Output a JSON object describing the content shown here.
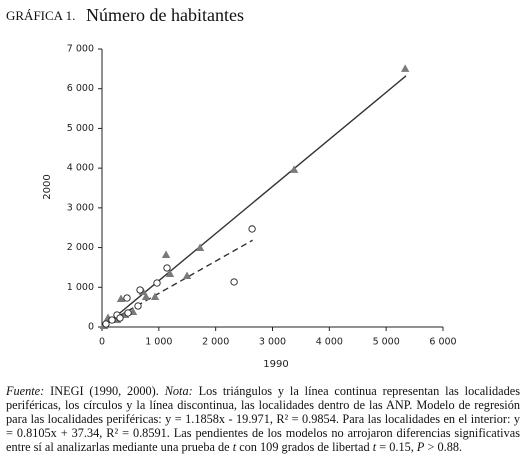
{
  "chart_data": {
    "type": "scatter",
    "title_prefix": "GRÁFICA 1.",
    "title": "Número de habitantes",
    "x_label": "1990",
    "y_label": "2000",
    "xlim": [
      0,
      6000
    ],
    "xticks": [
      0,
      {
        "value": 1000,
        "label": "1 000"
      },
      {
        "value": 2000,
        "label": "2 000"
      },
      {
        "value": 3000,
        "label": "3 000"
      },
      {
        "value": 4000,
        "label": "4 000"
      },
      {
        "value": 5000,
        "label": "5 000"
      },
      {
        "value": 6000,
        "label": "6 000"
      }
    ],
    "ylim": [
      0,
      7000
    ],
    "yticks": [
      0,
      {
        "value": 1000,
        "label": "1 000"
      },
      {
        "value": 2000,
        "label": "2 000"
      },
      {
        "value": 3000,
        "label": "3 000"
      },
      {
        "value": 4000,
        "label": "4 000"
      },
      {
        "value": 5000,
        "label": "5 000"
      },
      {
        "value": 6000,
        "label": "6 000"
      },
      {
        "value": 7000,
        "label": "7 000"
      }
    ],
    "grid": false,
    "series": [
      {
        "marker": "triangle",
        "color": "#7a7a7a",
        "x": [
          5335,
          3380,
          1725,
          1127,
          1496,
          1197,
          933,
          722,
          775,
          334,
          106,
          264,
          35,
          405,
          546
        ],
        "values": [
          6500,
          3955,
          1990,
          1813,
          1285,
          1335,
          756,
          882,
          756,
          705,
          227,
          176,
          25,
          302,
          378
        ]
      },
      {
        "marker": "circle",
        "color": "#222222",
        "x": [
          2641,
          2324,
          1144,
          968,
          669,
          440,
          458,
          264,
          176,
          70,
          634,
          317
        ],
        "values": [
          2469,
          1134,
          1486,
          1108,
          932,
          730,
          353,
          302,
          176,
          76,
          529,
          227
        ]
      }
    ],
    "lines": [
      {
        "dash": false,
        "color": "#333333",
        "x": [
          0,
          5350
        ],
        "values": [
          -20,
          6324
        ]
      },
      {
        "dash": true,
        "color": "#333333",
        "x": [
          0,
          2650
        ],
        "values": [
          37,
          2185
        ]
      }
    ],
    "footnote": [
      {
        "text": "Fuente:",
        "italic": true
      },
      {
        "text": " INEGI (1990, 2000). ",
        "italic": false
      },
      {
        "text": "Nota:",
        "italic": true
      },
      {
        "text": " Los triángulos y la línea continua representan las localidades periféricas, los círculos y la línea discontinua, las localidades dentro de las ANP. Modelo de regresión para las localidades periféricas: y = 1.1858x - 19.971, R² = 0.9854. Para las localidades en el interior: y = 0.8105x + 37.34, R² = 0.8591. Las pendientes de los modelos no arrojaron diferencias significativas entre sí al analizarlas mediante una prueba de ",
        "italic": false
      },
      {
        "text": "t",
        "italic": true
      },
      {
        "text": " con 109 grados de libertad ",
        "italic": false
      },
      {
        "text": "t",
        "italic": true
      },
      {
        "text": " = 0.15, ",
        "italic": false
      },
      {
        "text": "P",
        "italic": true
      },
      {
        "text": " > 0.88.",
        "italic": false
      }
    ]
  }
}
